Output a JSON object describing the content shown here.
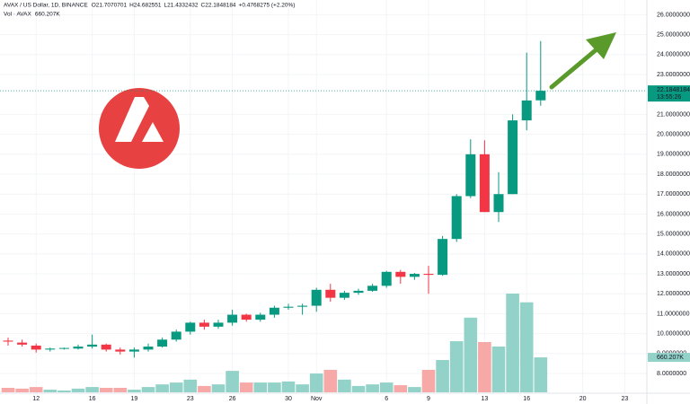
{
  "chart_data": {
    "type": "candlestick",
    "title": "AVAX / US Dollar, 1D, BINANCE",
    "ohlc_labels": [
      "O",
      "H",
      "L",
      "C"
    ],
    "change": "+0.4768275 (+2.20%)",
    "volume_title": "Vol · AVAX",
    "volume_label": "660.207K",
    "countdown": "13:55:26",
    "categories": [
      null,
      null,
      "12",
      null,
      null,
      null,
      "16",
      null,
      null,
      "19",
      null,
      null,
      null,
      "23",
      null,
      null,
      "26",
      null,
      null,
      null,
      "30",
      null,
      "Nov",
      null,
      null,
      null,
      null,
      "6",
      null,
      null,
      "9",
      null,
      null,
      null,
      "13",
      null,
      null,
      "16",
      null,
      null,
      null,
      "20",
      null,
      null,
      "23",
      null
    ],
    "open": [
      9.65,
      9.55,
      9.4,
      9.2,
      9.25,
      9.25,
      9.35,
      9.45,
      9.2,
      9.1,
      9.2,
      9.35,
      9.7,
      10.1,
      10.55,
      10.35,
      10.55,
      10.95,
      10.7,
      10.95,
      11.3,
      11.35,
      11.4,
      12.2,
      11.8,
      12.05,
      12.15,
      12.4,
      13.1,
      12.85,
      13.0,
      12.95,
      14.75,
      16.9,
      19.0,
      16.1,
      17.0,
      20.7,
      21.7070701,
      null,
      null,
      null,
      null,
      null,
      null,
      null
    ],
    "high": [
      9.8,
      9.7,
      9.5,
      9.3,
      9.3,
      9.45,
      9.95,
      9.5,
      9.3,
      9.3,
      9.5,
      9.8,
      10.2,
      10.6,
      10.7,
      10.7,
      11.2,
      11.0,
      11.05,
      11.4,
      11.5,
      11.5,
      12.3,
      12.5,
      12.15,
      12.25,
      12.5,
      13.15,
      13.2,
      13.05,
      13.4,
      14.9,
      17.0,
      19.75,
      19.7,
      18.1,
      21.0,
      24.1,
      24.682551,
      null,
      null,
      null,
      null,
      null,
      null,
      null
    ],
    "low": [
      9.4,
      9.35,
      9.05,
      9.1,
      9.2,
      9.2,
      9.25,
      9.1,
      8.95,
      8.8,
      9.1,
      9.3,
      9.6,
      9.95,
      10.2,
      10.25,
      10.4,
      10.6,
      10.6,
      10.8,
      11.2,
      10.95,
      11.1,
      11.6,
      11.7,
      11.95,
      12.1,
      12.3,
      12.5,
      12.7,
      12.0,
      12.9,
      14.6,
      16.8,
      16.1,
      15.6,
      17.0,
      20.2,
      21.4332432,
      null,
      null,
      null,
      null,
      null,
      null,
      null
    ],
    "close": [
      9.6,
      9.45,
      9.2,
      9.25,
      9.28,
      9.35,
      9.45,
      9.2,
      9.1,
      9.2,
      9.35,
      9.7,
      10.1,
      10.55,
      10.35,
      10.55,
      10.95,
      10.7,
      10.95,
      11.3,
      11.35,
      11.4,
      12.2,
      11.8,
      12.05,
      12.15,
      12.4,
      13.1,
      12.85,
      13.0,
      12.95,
      14.75,
      16.9,
      19.0,
      16.1,
      17.0,
      20.7,
      21.7,
      22.1848184,
      null,
      null,
      null,
      null,
      null,
      null,
      null
    ],
    "volume": [
      85,
      70,
      100,
      50,
      35,
      70,
      100,
      85,
      85,
      50,
      100,
      150,
      185,
      240,
      120,
      150,
      405,
      185,
      185,
      185,
      205,
      150,
      355,
      425,
      240,
      120,
      150,
      185,
      135,
      100,
      425,
      610,
      965,
      1410,
      950,
      865,
      1865,
      1700,
      660.207,
      null,
      null,
      null,
      null,
      null,
      null,
      null
    ],
    "up_color": "#089981",
    "down_color": "#f23645",
    "volume_up_color": "#92d2c8",
    "volume_down_color": "#f7a9a7",
    "ylim": [
      6.92,
      26.74
    ],
    "yticks": [
      {
        "value": 8,
        "label": "8.0000000"
      },
      {
        "value": 9,
        "label": "9.0000000"
      },
      {
        "value": 10,
        "label": "10.0000000"
      },
      {
        "value": 11,
        "label": "11.0000000"
      },
      {
        "value": 12,
        "label": "12.0000000"
      },
      {
        "value": 13,
        "label": "13.0000000"
      },
      {
        "value": 14,
        "label": "14.0000000"
      },
      {
        "value": 15,
        "label": "15.0000000"
      },
      {
        "value": 16,
        "label": "16.0000000"
      },
      {
        "value": 17,
        "label": "17.0000000"
      },
      {
        "value": 18,
        "label": "18.0000000"
      },
      {
        "value": 19,
        "label": "19.0000000"
      },
      {
        "value": 20,
        "label": "20.0000000"
      },
      {
        "value": 21,
        "label": "21.0000000"
      },
      {
        "value": 23,
        "label": "23.0000000"
      },
      {
        "value": 24,
        "label": "24.0000000"
      },
      {
        "value": 25,
        "label": "25.0000000"
      },
      {
        "value": 26,
        "label": "26.0000000"
      }
    ],
    "grid": true
  }
}
